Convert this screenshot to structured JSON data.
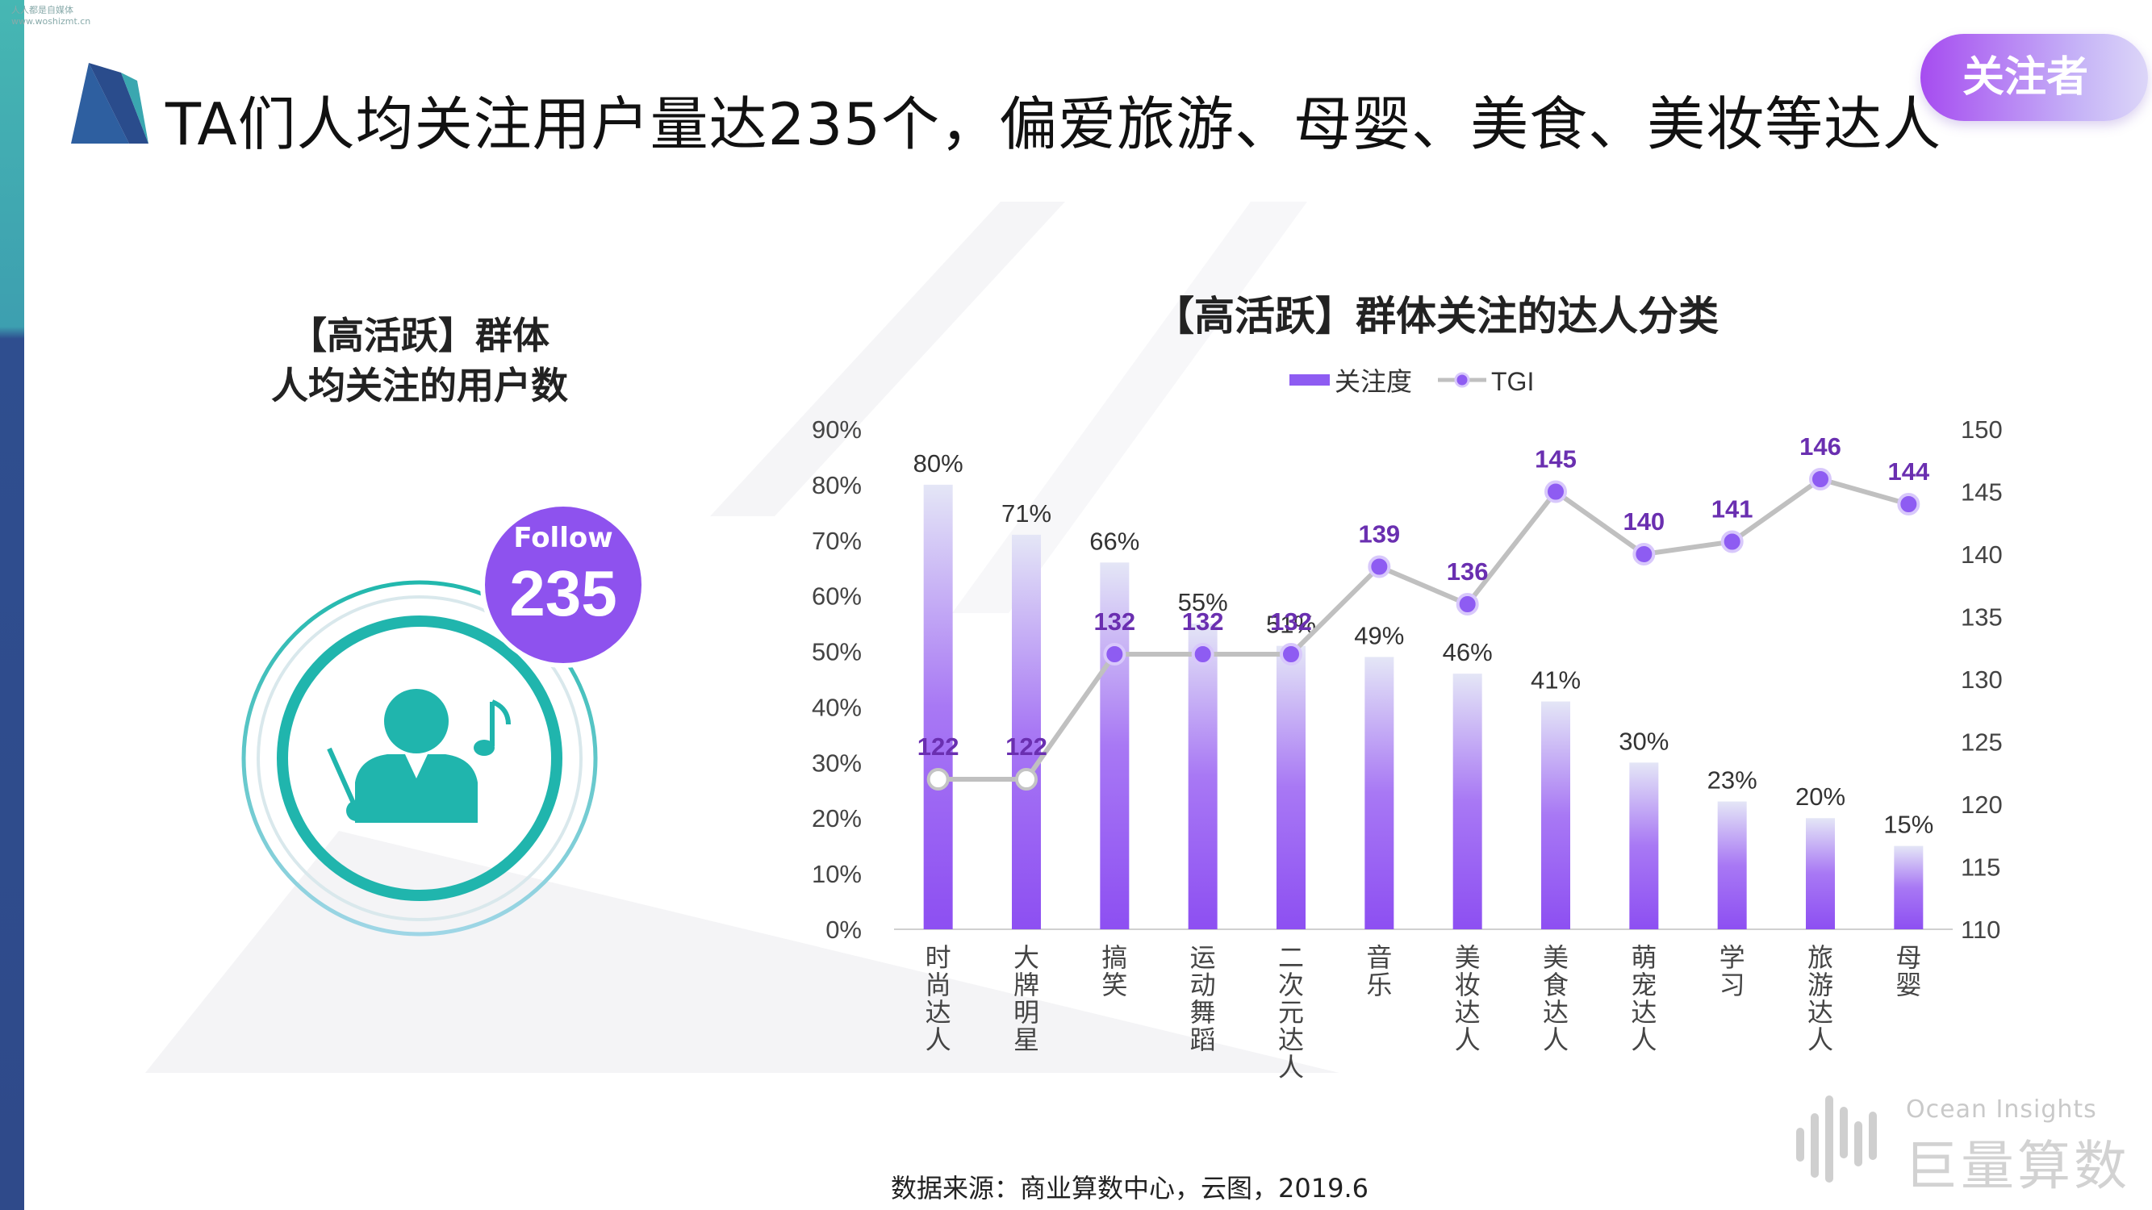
{
  "watermark": [
    "人人都是自媒体",
    "www.woshizmt.cn"
  ],
  "page_title": "TA们人均关注用户量达235个，偏爱旅游、母婴、美食、美妆等达人",
  "badge": "关注者",
  "left_panel": {
    "title_line1": "【高活跃】群体",
    "title_line2": "人均关注的用户数",
    "follow_label": "Follow",
    "follow_value": "235"
  },
  "colors": {
    "accent_purple": "#8e5cf2",
    "tgi_line": "#c0c0c0",
    "tgi_label": "#6a2fb0",
    "teal": "#20b5ad"
  },
  "icons": [
    "conductor-icon",
    "music-note-icon",
    "ocean-insights-logo-icon"
  ],
  "chart_data": {
    "type": "bar",
    "title": "【高活跃】群体关注的达人分类",
    "categories": [
      "时尚达人",
      "大牌明星",
      "搞笑",
      "运动舞蹈",
      "二次元达人",
      "音乐",
      "美妆达人",
      "美食达人",
      "萌宠达人",
      "学习",
      "旅游达人",
      "母婴"
    ],
    "series": [
      {
        "name": "关注度",
        "type": "bar",
        "axis": "left",
        "values": [
          80,
          71,
          66,
          55,
          51,
          49,
          46,
          41,
          30,
          23,
          20,
          15
        ],
        "labels": [
          "80%",
          "71%",
          "66%",
          "55%",
          "51%",
          "49%",
          "46%",
          "41%",
          "30%",
          "23%",
          "20%",
          "15%"
        ]
      },
      {
        "name": "TGI",
        "type": "line",
        "axis": "right",
        "values": [
          122,
          122,
          132,
          132,
          132,
          139,
          136,
          145,
          140,
          141,
          146,
          144
        ]
      }
    ],
    "y_left": {
      "ticks": [
        "0%",
        "10%",
        "20%",
        "30%",
        "40%",
        "50%",
        "60%",
        "70%",
        "80%",
        "90%"
      ],
      "ylim": [
        0,
        90
      ]
    },
    "y_right": {
      "ticks": [
        "110",
        "115",
        "120",
        "125",
        "130",
        "135",
        "140",
        "145",
        "150"
      ],
      "ylim": [
        110,
        150
      ]
    },
    "legend_position": "top",
    "grid": false
  },
  "source": "数据来源：商业算数中心，云图，2019.6",
  "logo": {
    "en": "Ocean Insights",
    "cn": "巨量算数"
  }
}
